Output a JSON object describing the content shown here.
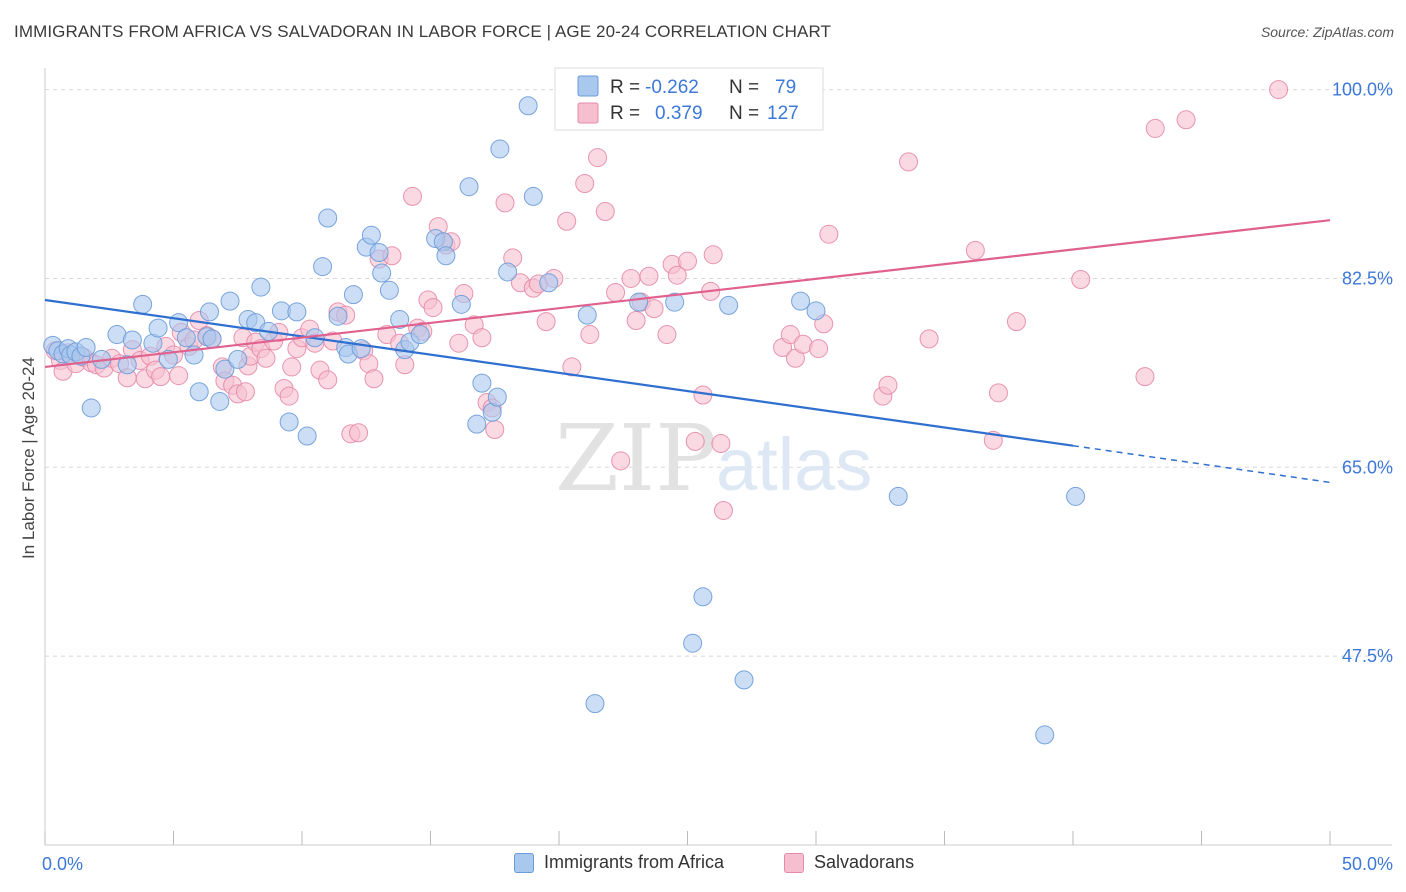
{
  "title": "IMMIGRANTS FROM AFRICA VS SALVADORAN IN LABOR FORCE | AGE 20-24 CORRELATION CHART",
  "source": "Source: ZipAtlas.com",
  "watermark": {
    "zip": "ZIP",
    "atlas": "atlas"
  },
  "colors": {
    "blue_fill": "#a9c8ee",
    "blue_stroke": "#6b9bd8",
    "blue_line": "#2f6fd0",
    "pink_fill": "#f6bfd0",
    "pink_stroke": "#e58aa8",
    "pink_line": "#e0608e",
    "tick_label": "#3d78d8",
    "grid": "#d8d8d8"
  },
  "legend_box": {
    "rows": [
      {
        "r_label": "R =",
        "r_value": "-0.262",
        "n_label": "N =",
        "n_value": "79",
        "series": "blue"
      },
      {
        "r_label": "R =",
        "r_value": "0.379",
        "n_label": "N =",
        "n_value": "127",
        "series": "pink"
      }
    ]
  },
  "chart_data": {
    "type": "scatter",
    "title": "IMMIGRANTS FROM AFRICA VS SALVADORAN IN LABOR FORCE | AGE 20-24 CORRELATION CHART",
    "xlabel": "",
    "ylabel": "In Labor Force | Age 20-24",
    "xlim": [
      0,
      50
    ],
    "ylim": [
      30,
      102
    ],
    "x_tick_labels": [
      {
        "value": 0,
        "label": "0.0%"
      },
      {
        "value": 50,
        "label": "50.0%"
      }
    ],
    "y_tick_labels": [
      {
        "value": 100,
        "label": "100.0%"
      },
      {
        "value": 82.5,
        "label": "82.5%"
      },
      {
        "value": 65,
        "label": "65.0%"
      },
      {
        "value": 47.5,
        "label": "47.5%"
      }
    ],
    "grid": "horizontal dashed",
    "legend_position": "bottom",
    "series": [
      {
        "name": "Immigrants from Africa",
        "color": "blue",
        "R": -0.262,
        "N": 79,
        "trend": {
          "x0": 0,
          "y0": 80.5,
          "x1": 40,
          "y1": 67.0,
          "dashed_to_x": 50,
          "dashed_to_y": 63.6
        },
        "points": [
          [
            0.3,
            76.3
          ],
          [
            0.5,
            75.8
          ],
          [
            0.7,
            75.5
          ],
          [
            0.9,
            76.0
          ],
          [
            1.0,
            75.4
          ],
          [
            1.2,
            75.7
          ],
          [
            1.4,
            75.3
          ],
          [
            1.6,
            76.1
          ],
          [
            1.8,
            70.5
          ],
          [
            2.2,
            75.0
          ],
          [
            2.8,
            77.3
          ],
          [
            3.2,
            74.5
          ],
          [
            3.4,
            76.8
          ],
          [
            3.8,
            80.1
          ],
          [
            4.2,
            76.5
          ],
          [
            4.4,
            77.9
          ],
          [
            4.8,
            75.0
          ],
          [
            5.2,
            78.4
          ],
          [
            5.5,
            77.0
          ],
          [
            5.8,
            75.4
          ],
          [
            6.0,
            72.0
          ],
          [
            6.3,
            77.1
          ],
          [
            6.5,
            76.9
          ],
          [
            6.4,
            79.4
          ],
          [
            6.8,
            71.1
          ],
          [
            7.0,
            74.1
          ],
          [
            7.2,
            80.4
          ],
          [
            7.5,
            75.0
          ],
          [
            7.9,
            78.7
          ],
          [
            8.2,
            78.4
          ],
          [
            8.4,
            81.7
          ],
          [
            8.7,
            77.6
          ],
          [
            9.2,
            79.5
          ],
          [
            9.5,
            69.2
          ],
          [
            9.8,
            79.4
          ],
          [
            10.2,
            67.9
          ],
          [
            10.5,
            77.0
          ],
          [
            10.8,
            83.6
          ],
          [
            11.0,
            88.1
          ],
          [
            11.4,
            79.0
          ],
          [
            11.7,
            76.1
          ],
          [
            11.8,
            75.5
          ],
          [
            12.0,
            81.0
          ],
          [
            12.3,
            76.0
          ],
          [
            12.5,
            85.4
          ],
          [
            12.7,
            86.5
          ],
          [
            13.0,
            84.9
          ],
          [
            13.1,
            83.0
          ],
          [
            13.4,
            81.4
          ],
          [
            13.8,
            78.7
          ],
          [
            14.0,
            75.9
          ],
          [
            14.2,
            76.6
          ],
          [
            14.6,
            77.3
          ],
          [
            15.2,
            86.2
          ],
          [
            15.5,
            85.9
          ],
          [
            15.6,
            84.6
          ],
          [
            16.2,
            80.1
          ],
          [
            16.5,
            91.0
          ],
          [
            16.8,
            69.0
          ],
          [
            17.0,
            72.8
          ],
          [
            17.4,
            70.1
          ],
          [
            17.6,
            71.5
          ],
          [
            17.7,
            94.5
          ],
          [
            18.0,
            83.1
          ],
          [
            18.8,
            98.5
          ],
          [
            19.0,
            90.1
          ],
          [
            19.6,
            82.1
          ],
          [
            21.1,
            79.1
          ],
          [
            21.4,
            43.1
          ],
          [
            23.1,
            80.3
          ],
          [
            24.5,
            80.3
          ],
          [
            25.2,
            48.7
          ],
          [
            25.6,
            53.0
          ],
          [
            26.6,
            80.0
          ],
          [
            27.2,
            45.3
          ],
          [
            29.4,
            80.4
          ],
          [
            30.0,
            79.5
          ],
          [
            33.2,
            62.3
          ],
          [
            38.9,
            40.2
          ],
          [
            40.1,
            62.3
          ]
        ]
      },
      {
        "name": "Salvadorans",
        "color": "pink",
        "R": 0.379,
        "N": 127,
        "trend": {
          "x0": 0,
          "y0": 74.3,
          "x1": 50,
          "y1": 87.9
        },
        "points": [
          [
            0.4,
            75.8
          ],
          [
            0.6,
            74.9
          ],
          [
            0.7,
            73.9
          ],
          [
            0.9,
            75.6
          ],
          [
            1.2,
            74.6
          ],
          [
            1.5,
            75.2
          ],
          [
            1.8,
            74.7
          ],
          [
            2.0,
            74.5
          ],
          [
            2.3,
            74.2
          ],
          [
            2.6,
            75.1
          ],
          [
            2.9,
            74.6
          ],
          [
            3.2,
            73.3
          ],
          [
            3.4,
            75.9
          ],
          [
            3.7,
            74.9
          ],
          [
            3.9,
            73.2
          ],
          [
            4.1,
            75.3
          ],
          [
            4.3,
            74.0
          ],
          [
            4.5,
            73.4
          ],
          [
            4.7,
            76.2
          ],
          [
            5.0,
            75.4
          ],
          [
            5.2,
            73.5
          ],
          [
            5.3,
            77.5
          ],
          [
            5.6,
            76.2
          ],
          [
            5.8,
            76.8
          ],
          [
            6.0,
            78.6
          ],
          [
            6.3,
            77.2
          ],
          [
            6.5,
            76.9
          ],
          [
            6.9,
            74.3
          ],
          [
            7.0,
            73.0
          ],
          [
            7.3,
            72.6
          ],
          [
            7.5,
            71.8
          ],
          [
            7.7,
            77.0
          ],
          [
            7.8,
            72.0
          ],
          [
            7.9,
            74.4
          ],
          [
            8.0,
            75.3
          ],
          [
            8.2,
            76.6
          ],
          [
            8.4,
            76.0
          ],
          [
            8.6,
            75.1
          ],
          [
            8.9,
            76.7
          ],
          [
            9.1,
            77.5
          ],
          [
            9.3,
            72.3
          ],
          [
            9.5,
            71.6
          ],
          [
            9.6,
            74.3
          ],
          [
            9.8,
            76.0
          ],
          [
            10.0,
            77.0
          ],
          [
            10.3,
            77.8
          ],
          [
            10.5,
            76.5
          ],
          [
            10.7,
            74.0
          ],
          [
            11.0,
            73.1
          ],
          [
            11.2,
            76.7
          ],
          [
            11.4,
            79.4
          ],
          [
            11.7,
            79.1
          ],
          [
            11.9,
            68.1
          ],
          [
            12.2,
            68.2
          ],
          [
            12.4,
            75.8
          ],
          [
            12.6,
            74.6
          ],
          [
            12.8,
            73.2
          ],
          [
            13.0,
            84.3
          ],
          [
            13.3,
            77.3
          ],
          [
            13.5,
            84.6
          ],
          [
            13.8,
            76.5
          ],
          [
            14.0,
            74.5
          ],
          [
            14.3,
            90.1
          ],
          [
            14.5,
            77.9
          ],
          [
            14.7,
            77.6
          ],
          [
            14.9,
            80.5
          ],
          [
            15.1,
            79.8
          ],
          [
            15.3,
            87.3
          ],
          [
            15.6,
            85.6
          ],
          [
            15.8,
            85.9
          ],
          [
            16.1,
            76.5
          ],
          [
            16.3,
            81.1
          ],
          [
            16.7,
            78.2
          ],
          [
            17.0,
            77.0
          ],
          [
            17.2,
            71.0
          ],
          [
            17.4,
            70.5
          ],
          [
            17.5,
            68.5
          ],
          [
            17.9,
            89.5
          ],
          [
            18.2,
            84.4
          ],
          [
            18.5,
            82.1
          ],
          [
            19.0,
            81.6
          ],
          [
            19.2,
            82.0
          ],
          [
            19.5,
            78.5
          ],
          [
            19.8,
            82.5
          ],
          [
            20.3,
            87.8
          ],
          [
            20.5,
            74.3
          ],
          [
            21.0,
            91.3
          ],
          [
            21.2,
            77.3
          ],
          [
            21.5,
            93.7
          ],
          [
            21.8,
            88.7
          ],
          [
            22.2,
            81.2
          ],
          [
            22.4,
            65.6
          ],
          [
            22.8,
            82.5
          ],
          [
            23.0,
            78.6
          ],
          [
            23.2,
            80.3
          ],
          [
            23.5,
            82.7
          ],
          [
            23.7,
            79.7
          ],
          [
            24.2,
            77.3
          ],
          [
            24.4,
            83.8
          ],
          [
            24.6,
            82.8
          ],
          [
            25.0,
            84.1
          ],
          [
            25.3,
            67.4
          ],
          [
            25.6,
            71.7
          ],
          [
            25.9,
            81.3
          ],
          [
            26.0,
            84.7
          ],
          [
            26.3,
            67.2
          ],
          [
            26.4,
            61.0
          ],
          [
            28.7,
            76.1
          ],
          [
            29.0,
            77.3
          ],
          [
            29.2,
            75.1
          ],
          [
            29.5,
            76.4
          ],
          [
            30.1,
            76.0
          ],
          [
            30.3,
            78.3
          ],
          [
            30.5,
            86.6
          ],
          [
            32.6,
            71.6
          ],
          [
            32.8,
            72.6
          ],
          [
            33.6,
            93.3
          ],
          [
            34.4,
            76.9
          ],
          [
            36.2,
            85.1
          ],
          [
            36.9,
            67.5
          ],
          [
            37.1,
            71.9
          ],
          [
            37.8,
            78.5
          ],
          [
            40.3,
            82.4
          ],
          [
            42.8,
            73.4
          ],
          [
            43.2,
            96.4
          ],
          [
            44.4,
            97.2
          ],
          [
            48.0,
            100.0
          ]
        ]
      }
    ]
  },
  "bottom_legend": [
    {
      "label": "Immigrants from Africa",
      "series": "blue"
    },
    {
      "label": "Salvadorans",
      "series": "pink"
    }
  ]
}
